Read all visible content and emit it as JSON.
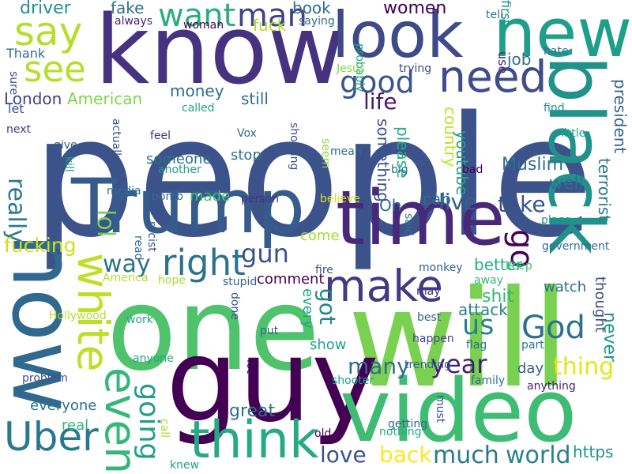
{
  "word_cloud": {
    "words": [
      {
        "text": "people",
        "color": "#3b528b"
      },
      {
        "text": "will",
        "color": "#7ad151"
      },
      {
        "text": "one",
        "color": "#4ec36b"
      },
      {
        "text": "guy",
        "color": "#440154"
      },
      {
        "text": "know",
        "color": "#46327e"
      },
      {
        "text": "video",
        "color": "#3fbc73"
      },
      {
        "text": "now",
        "color": "#31688e"
      },
      {
        "text": "time",
        "color": "#482878"
      },
      {
        "text": "Trump",
        "color": "#365c8d"
      },
      {
        "text": "black",
        "color": "#21918c"
      },
      {
        "text": "new",
        "color": "#1f9e89"
      },
      {
        "text": "look",
        "color": "#3e4a89"
      },
      {
        "text": "make",
        "color": "#443983"
      },
      {
        "text": "think",
        "color": "#25ab82"
      },
      {
        "text": "white",
        "color": "#bddf26"
      },
      {
        "text": "need",
        "color": "#3e4c8a"
      },
      {
        "text": "even",
        "color": "#35b779"
      },
      {
        "text": "say",
        "color": "#b5de2b"
      },
      {
        "text": "Uber",
        "color": "#2a788e"
      },
      {
        "text": "see",
        "color": "#b5de2b"
      },
      {
        "text": "right",
        "color": "#2c728e"
      },
      {
        "text": "want",
        "color": "#29af7f"
      },
      {
        "text": "man",
        "color": "#414487"
      },
      {
        "text": "God",
        "color": "#2d708e"
      },
      {
        "text": "go",
        "color": "#440154"
      },
      {
        "text": "good",
        "color": "#39568c"
      },
      {
        "text": "going",
        "color": "#1f9e89"
      },
      {
        "text": "us",
        "color": "#26828e"
      },
      {
        "text": "year",
        "color": "#481f70"
      },
      {
        "text": "gun",
        "color": "#3b528b"
      },
      {
        "text": "way",
        "color": "#2c728e"
      },
      {
        "text": "lol",
        "color": "#73d056"
      },
      {
        "text": "really",
        "color": "#2a788e"
      },
      {
        "text": "much",
        "color": "#2a788e"
      },
      {
        "text": "thing",
        "color": "#e5e419"
      },
      {
        "text": "world",
        "color": "#26828e"
      },
      {
        "text": "back",
        "color": "#fde725"
      },
      {
        "text": "love",
        "color": "#3b528b"
      },
      {
        "text": "many",
        "color": "#2f6c8e"
      },
      {
        "text": "take",
        "color": "#3b528b"
      },
      {
        "text": "live",
        "color": "#33638d"
      },
      {
        "text": "life",
        "color": "#481a6c"
      },
      {
        "text": "got",
        "color": "#25848e"
      },
      {
        "text": "fucking",
        "color": "#d0e11c"
      },
      {
        "text": "driver",
        "color": "#21918c"
      },
      {
        "text": "women",
        "color": "#440154"
      },
      {
        "text": "great",
        "color": "#2e6e8e"
      },
      {
        "text": "Muslim",
        "color": "#2c728e"
      },
      {
        "text": "well",
        "color": "#2c728e"
      },
      {
        "text": "never",
        "color": "#1f958b"
      },
      {
        "text": "shit",
        "color": "#35b779"
      },
      {
        "text": "https",
        "color": "#21918c"
      },
      {
        "text": "Oh",
        "color": "#306a8e"
      },
      {
        "text": "cab",
        "color": "#2e6e8e"
      },
      {
        "text": "fake",
        "color": "#2d708e"
      },
      {
        "text": "book",
        "color": "#2e6e8e"
      },
      {
        "text": "fuck",
        "color": "#addc30"
      },
      {
        "text": "something",
        "color": "#3b528b"
      },
      {
        "text": "please",
        "color": "#27ad81"
      },
      {
        "text": "country",
        "color": "#c2df23"
      },
      {
        "text": "youtube",
        "color": "#21a585"
      },
      {
        "text": "terrorist",
        "color": "#2a788e"
      },
      {
        "text": "president",
        "color": "#33638d"
      },
      {
        "text": "money",
        "color": "#2e6e8e"
      },
      {
        "text": "still",
        "color": "#2e6e8e"
      },
      {
        "text": "American",
        "color": "#81d34d"
      },
      {
        "text": "London",
        "color": "#414487"
      },
      {
        "text": "job",
        "color": "#2e6e8e"
      },
      {
        "text": "better",
        "color": "#27ad81"
      },
      {
        "text": "attack",
        "color": "#26828e"
      },
      {
        "text": "watch",
        "color": "#2e6e8e"
      },
      {
        "text": "comment",
        "color": "#440154"
      },
      {
        "text": "made",
        "color": "#44bf70"
      },
      {
        "text": "day",
        "color": "#34608d"
      },
      {
        "text": "stop",
        "color": "#2c728e"
      },
      {
        "text": "someone",
        "color": "#2c728e"
      },
      {
        "text": "come",
        "color": "#a8db34"
      },
      {
        "text": "show",
        "color": "#21a585"
      },
      {
        "text": "every",
        "color": "#20a386"
      },
      {
        "text": "everyone",
        "color": "#2c728e"
      },
      {
        "text": "real",
        "color": "#35b779"
      },
      {
        "text": "thought",
        "color": "#3e4a89"
      },
      {
        "text": "let",
        "color": "#3b528b"
      },
      {
        "text": "Thank",
        "color": "#2e6e8e"
      },
      {
        "text": "always",
        "color": "#482475"
      },
      {
        "text": "woman",
        "color": "#440154"
      },
      {
        "text": "saying",
        "color": "#2d708e"
      },
      {
        "text": "tell",
        "color": "#2e6e8e"
      },
      {
        "text": "first",
        "color": "#21918c"
      },
      {
        "text": "use",
        "color": "#472c7a"
      },
      {
        "text": "probably",
        "color": "#21a585"
      },
      {
        "text": "Jesus",
        "color": "#86d549"
      },
      {
        "text": "trying",
        "color": "#3e4a89"
      },
      {
        "text": "hate",
        "color": "#2c728e"
      },
      {
        "text": "find",
        "color": "#228d8d"
      },
      {
        "text": "sure",
        "color": "#3b528b"
      },
      {
        "text": "next",
        "color": "#443a83"
      },
      {
        "text": "called",
        "color": "#20a386"
      },
      {
        "text": "feel",
        "color": "#46337f"
      },
      {
        "text": "Vox",
        "color": "#2e6e8e"
      },
      {
        "text": "shooting",
        "color": "#3b528b"
      },
      {
        "text": "seem",
        "color": "#93d741"
      },
      {
        "text": "mean",
        "color": "#2e6e8e"
      },
      {
        "text": "big",
        "color": "#2c728e"
      },
      {
        "text": "bad",
        "color": "#440154"
      },
      {
        "text": "little",
        "color": "#25ab82"
      },
      {
        "text": "give",
        "color": "#39568c"
      },
      {
        "text": "kill",
        "color": "#1f9e89"
      },
      {
        "text": "actually",
        "color": "#3b528b"
      },
      {
        "text": "another",
        "color": "#1f9e89"
      },
      {
        "text": "media",
        "color": "#2e6e8e"
      },
      {
        "text": "bomb",
        "color": "#2e6e8e"
      },
      {
        "text": "person",
        "color": "#46327e"
      },
      {
        "text": "believe",
        "color": "#d2e21b"
      },
      {
        "text": "place",
        "color": "#21918c"
      },
      {
        "text": "government",
        "color": "#2e6e8e"
      },
      {
        "text": "read",
        "color": "#31688e"
      },
      {
        "text": "racist",
        "color": "#3b528b"
      },
      {
        "text": "America",
        "color": "#b5de2b"
      },
      {
        "text": "hope",
        "color": "#addc30"
      },
      {
        "text": "stupid",
        "color": "#33638d"
      },
      {
        "text": "fire",
        "color": "#3b528b"
      },
      {
        "text": "said",
        "color": "#2c728e"
      },
      {
        "text": "monkey",
        "color": "#33638d"
      },
      {
        "text": "may",
        "color": "#46327e"
      },
      {
        "text": "away",
        "color": "#35b779"
      },
      {
        "text": "keep",
        "color": "#3fbc73"
      },
      {
        "text": "done",
        "color": "#3b528b"
      },
      {
        "text": "work",
        "color": "#20a386"
      },
      {
        "text": "Hollywood",
        "color": "#b5de2b"
      },
      {
        "text": "put",
        "color": "#33638d"
      },
      {
        "text": "best",
        "color": "#33638d"
      },
      {
        "text": "happen",
        "color": "#414487"
      },
      {
        "text": "flag",
        "color": "#2c728e"
      },
      {
        "text": "part",
        "color": "#2c728e"
      },
      {
        "text": "anyone",
        "color": "#21a585"
      },
      {
        "text": "trending",
        "color": "#33638d"
      },
      {
        "text": "problem",
        "color": "#3b528b"
      },
      {
        "text": "lot",
        "color": "#440154"
      },
      {
        "text": "shooter",
        "color": "#1f9e89"
      },
      {
        "text": "family",
        "color": "#2e6e8e"
      },
      {
        "text": "anything",
        "color": "#481f70"
      },
      {
        "text": "call",
        "color": "#addc30"
      },
      {
        "text": "must",
        "color": "#3b528b"
      },
      {
        "text": "getting",
        "color": "#31688e"
      },
      {
        "text": "nothing",
        "color": "#25ab82"
      },
      {
        "text": "old",
        "color": "#440154"
      },
      {
        "text": "knew",
        "color": "#1f9e89"
      },
      {
        "text": "help",
        "color": "#440154"
      },
      {
        "text": "kid",
        "color": "#2e6e8e"
      }
    ]
  }
}
